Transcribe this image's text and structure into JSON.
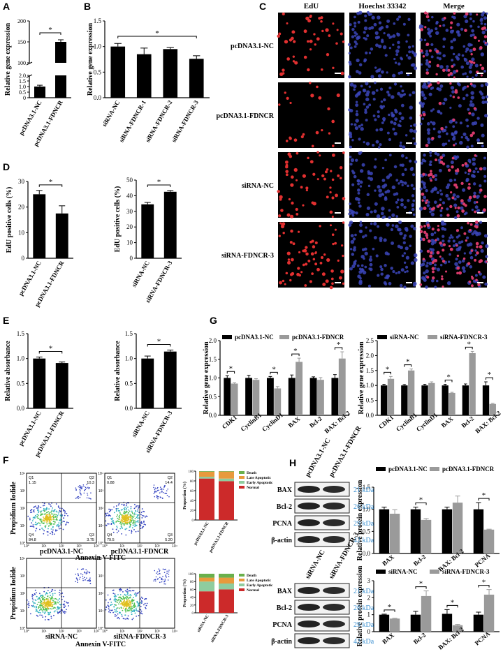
{
  "colors": {
    "black": "#000000",
    "gray": "#9a9a9a",
    "kda": "#3a8fd0",
    "normal": "#cc2a2a",
    "early": "#8fcc9e",
    "late": "#e89a3c",
    "death": "#6ab04c"
  },
  "panels": {
    "A": "A",
    "B": "B",
    "C": "C",
    "D": "D",
    "E": "E",
    "F": "F",
    "G": "G",
    "H": "H"
  },
  "chart_data": [
    {
      "id": "A",
      "type": "bar",
      "categories": [
        "pcDNA3.1-NC",
        "pcDNA3.1-FDNCR"
      ],
      "values": [
        1.0,
        150
      ],
      "errors": [
        0.12,
        5
      ],
      "ylabel": "Relative gene expression",
      "yticks": [
        "0",
        "0.5",
        "1.0",
        "1.5",
        "2.0",
        "100",
        "150",
        "200"
      ],
      "sig": "*"
    },
    {
      "id": "B",
      "type": "bar",
      "categories": [
        "siRNA-NC",
        "siRNA-FDNCR-1",
        "siRNA-FDNCR-2",
        "siRNA-FDNCR-3"
      ],
      "values": [
        1.0,
        0.85,
        0.95,
        0.76
      ],
      "errors": [
        0.06,
        0.12,
        0.03,
        0.06
      ],
      "ylabel": "Relative gene expression",
      "ylim": [
        0,
        1.5
      ],
      "yticks": [
        "0.0",
        "0.5",
        "1.0",
        "1.5"
      ],
      "sig": "*"
    },
    {
      "id": "D1",
      "type": "bar",
      "categories": [
        "pcDNA3.1-NC",
        "pcDNA3.1-FDNCR"
      ],
      "values": [
        25,
        17.5
      ],
      "errors": [
        1.5,
        3
      ],
      "ylabel": "EdU positive cells (%)",
      "ylim": [
        0,
        30
      ],
      "yticks": [
        "0",
        "10",
        "20",
        "30"
      ],
      "sig": "*"
    },
    {
      "id": "D2",
      "type": "bar",
      "categories": [
        "siRNA-NC",
        "siRNA-FDNCR-3"
      ],
      "values": [
        34.5,
        42.5
      ],
      "errors": [
        1.2,
        0.8
      ],
      "ylabel": "EdU positive cells (%)",
      "ylim": [
        0,
        50
      ],
      "yticks": [
        "0",
        "10",
        "20",
        "30",
        "40",
        "50"
      ],
      "sig": "*"
    },
    {
      "id": "E1",
      "type": "bar",
      "categories": [
        "pcDNA3.1-NC",
        "pcDNA3.1-FDNCR"
      ],
      "values": [
        1.0,
        0.91
      ],
      "errors": [
        0.03,
        0.02
      ],
      "ylabel": "Relative absorbance",
      "ylim": [
        0,
        1.5
      ],
      "yticks": [
        "0.0",
        "0.5",
        "1.0",
        "1.5"
      ],
      "sig": "*"
    },
    {
      "id": "E2",
      "type": "bar",
      "categories": [
        "siRNA-NC",
        "siRNA-FDNCR-3"
      ],
      "values": [
        1.0,
        1.14
      ],
      "errors": [
        0.05,
        0.03
      ],
      "ylabel": "Relative absorbance",
      "ylim": [
        0,
        1.5
      ],
      "yticks": [
        "0.0",
        "0.5",
        "1.0",
        "1.5"
      ],
      "sig": "*"
    },
    {
      "id": "G1",
      "type": "bar",
      "categories": [
        "CDK1",
        "CyclinB1",
        "CyclinD1",
        "BAX",
        "Bcl-2",
        "BAX: Bcl-2"
      ],
      "series": [
        {
          "name": "pcDNA3.1-NC",
          "values": [
            1.0,
            1.0,
            1.0,
            1.0,
            1.0,
            1.0
          ],
          "errors": [
            0.06,
            0.07,
            0.04,
            0.08,
            0.03,
            0.09
          ]
        },
        {
          "name": "pcDNA3.1-FDNCR",
          "values": [
            0.85,
            0.95,
            0.72,
            1.43,
            0.95,
            1.52
          ],
          "errors": [
            0.02,
            0.03,
            0.05,
            0.1,
            0.06,
            0.18
          ]
        }
      ],
      "ylabel": "Relative gene expression",
      "ylim": [
        0,
        2.0
      ],
      "yticks": [
        "0.0",
        "0.5",
        "1.0",
        "1.5",
        "2.0"
      ],
      "sig": [
        0,
        2,
        3,
        5
      ]
    },
    {
      "id": "G2",
      "type": "bar",
      "categories": [
        "CDK1",
        "CyclinB1",
        "CyclinD1",
        "BAX",
        "Bcl-2",
        "BAX: Bcl-2"
      ],
      "series": [
        {
          "name": "siRNA-NC",
          "values": [
            1.0,
            1.0,
            1.0,
            1.0,
            1.0,
            1.0
          ],
          "errors": [
            0.04,
            0.03,
            0.04,
            0.04,
            0.05,
            0.12
          ]
        },
        {
          "name": "siRNA-FDNCR-3",
          "values": [
            1.22,
            1.5,
            1.08,
            0.75,
            2.08,
            0.38
          ],
          "errors": [
            0.08,
            0.05,
            0.04,
            0.02,
            0.06,
            0.02
          ]
        }
      ],
      "ylabel": "Relative gene expression",
      "ylim": [
        0,
        2.5
      ],
      "yticks": [
        "0.0",
        "0.5",
        "1.0",
        "1.5",
        "2.0",
        "2.5"
      ],
      "sig": [
        0,
        1,
        3,
        4,
        5
      ]
    },
    {
      "id": "H1",
      "type": "bar",
      "categories": [
        "BAX",
        "Bcl-2",
        "BAX: Bcl-2",
        "PCNA"
      ],
      "series": [
        {
          "name": "pcDNA3.1-NC",
          "values": [
            1.0,
            1.0,
            1.0,
            1.0
          ],
          "errors": [
            0.05,
            0.05,
            0.05,
            0.15
          ]
        },
        {
          "name": "pcDNA3.1-FDNCR",
          "values": [
            0.9,
            0.76,
            1.15,
            0.54
          ],
          "errors": [
            0.09,
            0.03,
            0.15,
            0.01
          ]
        }
      ],
      "ylabel": "Relative protein expression",
      "ylim": [
        0,
        1.5
      ],
      "yticks": [
        "0.0",
        "0.5",
        "1.0",
        "1.5"
      ],
      "sig": [
        1,
        3
      ]
    },
    {
      "id": "H2",
      "type": "bar",
      "categories": [
        "BAX",
        "Bcl-2",
        "BAX: Bcl-2",
        "PCNA"
      ],
      "series": [
        {
          "name": "siRNA-NC",
          "values": [
            1.0,
            1.0,
            1.05,
            1.0
          ],
          "errors": [
            0.03,
            0.2,
            0.25,
            0.15
          ]
        },
        {
          "name": "siRNA-FDNCR-3",
          "values": [
            0.77,
            2.1,
            0.38,
            2.18
          ],
          "errors": [
            0.02,
            0.3,
            0.05,
            0.3
          ]
        }
      ],
      "ylabel": "Relative protein expression",
      "ylim": [
        0,
        3
      ],
      "yticks": [
        "0",
        "1",
        "2",
        "3"
      ],
      "sig": [
        0,
        1,
        2,
        3
      ]
    }
  ],
  "microscopy": {
    "columns": [
      "EdU",
      "Hoechst 33342",
      "Merge"
    ],
    "rows": [
      "pcDNA3.1-NC",
      "pcDNA3.1-FDNCR",
      "siRNA-NC",
      "siRNA-FDNCR-3"
    ]
  },
  "flow": {
    "ylabel": "Propidium Iodide",
    "xlabel": "Annexin V-FITC",
    "plots": [
      {
        "name": "pcDNA3.1-NC",
        "q1": "Q1",
        "q1v": "1.15",
        "q2": "Q2",
        "q2v": "10.3",
        "q3": "Q3",
        "q3v": "3.75",
        "q4": "Q4",
        "q4v": "84.8"
      },
      {
        "name": "pcDNA3.1-FDNCR",
        "q1": "Q1",
        "q1v": "0.88",
        "q2": "Q2",
        "q2v": "14.4",
        "q3": "Q3",
        "q3v": "5.20",
        "q4": "Q4",
        "q4v": "79.5"
      },
      {
        "name": "siRNA-NC"
      },
      {
        "name": "siRNA-FDNCR-3"
      }
    ],
    "ticks": [
      "10⁰",
      "10¹",
      "10²",
      "10³",
      "10⁴"
    ]
  },
  "proportion": {
    "ylabel": "Proportion (%)",
    "yticks": [
      "0",
      "20",
      "40",
      "60",
      "80",
      "100"
    ],
    "legend": [
      "Death",
      "Late Apoptotic",
      "Early Apoptotic",
      "Normal"
    ],
    "top": {
      "categories": [
        "pcDNA3.1-NC",
        "pcDNA3.1-FDNCR"
      ],
      "normal": [
        84.8,
        79.5
      ],
      "early": [
        3.75,
        5.2
      ],
      "late": [
        10.3,
        14.4
      ],
      "death": [
        1.15,
        0.88
      ]
    },
    "bottom": {
      "categories": [
        "siRNA-NC",
        "siRNA-FDNCR-3"
      ],
      "normal": [
        55,
        60
      ],
      "early": [
        25,
        15
      ],
      "late": [
        10,
        15
      ],
      "death": [
        10,
        10
      ]
    }
  },
  "western": {
    "top": {
      "lanes": [
        "pcDNA3.1-NC",
        "pcDNA3.1-FDNCR"
      ],
      "bands": [
        {
          "name": "BAX",
          "kda": "21 kDa"
        },
        {
          "name": "Bcl-2",
          "kda": "26 kDa"
        },
        {
          "name": "PCNA",
          "kda": "29 kDa"
        },
        {
          "name": "β-actin",
          "kda": "42 kDa"
        }
      ]
    },
    "bottom": {
      "lanes": [
        "siRNA-NC",
        "siRNA-FDNCR-3"
      ],
      "bands": [
        {
          "name": "BAX",
          "kda": "21 kDa"
        },
        {
          "name": "Bcl-2",
          "kda": "26 kDa"
        },
        {
          "name": "PCNA",
          "kda": "29 kDa"
        },
        {
          "name": "β-actin",
          "kda": "42 kDa"
        }
      ]
    }
  }
}
